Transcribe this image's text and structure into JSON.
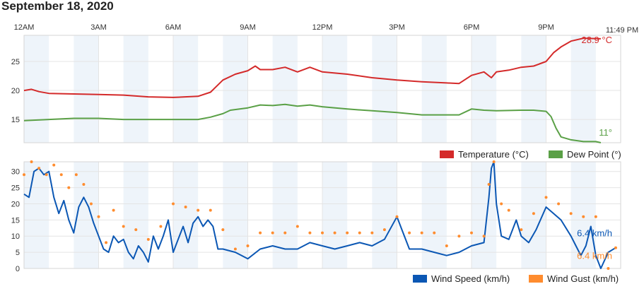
{
  "page": {
    "title": "September 18, 2020"
  },
  "time_axis": {
    "labels": [
      "12AM",
      "3AM",
      "6AM",
      "9AM",
      "12PM",
      "3PM",
      "6PM",
      "9PM"
    ],
    "current_time": "11:49 PM"
  },
  "colors": {
    "temperature": "#d42a2a",
    "dew_point": "#5aa046",
    "wind_speed": "#0b57b4",
    "wind_gust": "#ff8c2e",
    "band": "#eef4fa",
    "grid": "#e4e4e4"
  },
  "chart_data": [
    {
      "type": "line",
      "name": "temperature-chart",
      "x_unit": "hours since midnight",
      "xlim": [
        0,
        24
      ],
      "ylim": [
        11,
        29.5
      ],
      "yticks": [
        15,
        20,
        25
      ],
      "grid": true,
      "legend_position": "bottom-right",
      "series": [
        {
          "name": "Temperature (°C)",
          "color": "#d42a2a",
          "last_label": "28.9 °C",
          "points": [
            [
              0,
              20
            ],
            [
              0.3,
              20.2
            ],
            [
              0.6,
              19.8
            ],
            [
              1,
              19.5
            ],
            [
              2,
              19.4
            ],
            [
              3,
              19.3
            ],
            [
              4,
              19.2
            ],
            [
              5,
              18.9
            ],
            [
              6,
              18.8
            ],
            [
              7,
              19
            ],
            [
              7.5,
              19.7
            ],
            [
              8,
              21.8
            ],
            [
              8.5,
              22.8
            ],
            [
              9,
              23.4
            ],
            [
              9.3,
              24.2
            ],
            [
              9.5,
              23.6
            ],
            [
              10,
              23.6
            ],
            [
              10.5,
              24
            ],
            [
              11,
              23.2
            ],
            [
              11.5,
              24
            ],
            [
              12,
              23.2
            ],
            [
              13,
              22.8
            ],
            [
              14,
              22.2
            ],
            [
              15,
              21.8
            ],
            [
              16,
              21.5
            ],
            [
              17,
              21.3
            ],
            [
              17.5,
              21.2
            ],
            [
              18,
              22.6
            ],
            [
              18.5,
              23.2
            ],
            [
              18.8,
              22.2
            ],
            [
              19,
              23.2
            ],
            [
              19.5,
              23.5
            ],
            [
              20,
              24
            ],
            [
              20.5,
              24.2
            ],
            [
              21,
              25
            ],
            [
              21.3,
              26.5
            ],
            [
              21.6,
              27.5
            ],
            [
              22,
              28.5
            ],
            [
              22.5,
              29
            ],
            [
              23.2,
              28.9
            ]
          ]
        },
        {
          "name": "Dew Point (°)",
          "color": "#5aa046",
          "last_label": "11°",
          "points": [
            [
              0,
              14.8
            ],
            [
              1,
              15
            ],
            [
              2,
              15.2
            ],
            [
              3,
              15.2
            ],
            [
              4,
              15
            ],
            [
              5,
              15
            ],
            [
              6,
              15
            ],
            [
              7,
              15
            ],
            [
              7.5,
              15.4
            ],
            [
              8,
              16
            ],
            [
              8.3,
              16.6
            ],
            [
              9,
              17
            ],
            [
              9.5,
              17.5
            ],
            [
              10,
              17.4
            ],
            [
              10.5,
              17.6
            ],
            [
              11,
              17.3
            ],
            [
              11.5,
              17.5
            ],
            [
              12,
              17.2
            ],
            [
              13,
              16.8
            ],
            [
              14,
              16.5
            ],
            [
              15,
              16.2
            ],
            [
              16,
              15.8
            ],
            [
              17,
              15.8
            ],
            [
              17.5,
              15.8
            ],
            [
              18,
              16.8
            ],
            [
              18.5,
              16.6
            ],
            [
              19,
              16.5
            ],
            [
              20,
              16.6
            ],
            [
              20.5,
              16.6
            ],
            [
              21,
              16.4
            ],
            [
              21.2,
              15.5
            ],
            [
              21.4,
              13.5
            ],
            [
              21.6,
              12
            ],
            [
              22,
              11.5
            ],
            [
              22.5,
              11.2
            ],
            [
              23,
              11.2
            ],
            [
              23.2,
              11
            ]
          ]
        }
      ]
    },
    {
      "type": "line",
      "name": "wind-chart",
      "x_unit": "hours since midnight",
      "xlim": [
        0,
        24
      ],
      "ylim": [
        0,
        33
      ],
      "yticks": [
        0,
        5,
        10,
        15,
        20,
        25,
        30
      ],
      "grid": true,
      "legend_position": "bottom-right",
      "series": [
        {
          "name": "Wind Speed (km/h)",
          "color": "#0b57b4",
          "last_label": "6.4 km/h",
          "points": [
            [
              0,
              23
            ],
            [
              0.2,
              22
            ],
            [
              0.4,
              30
            ],
            [
              0.6,
              31
            ],
            [
              0.8,
              29
            ],
            [
              1,
              30
            ],
            [
              1.2,
              22
            ],
            [
              1.4,
              17
            ],
            [
              1.6,
              21
            ],
            [
              1.8,
              15
            ],
            [
              2,
              11
            ],
            [
              2.2,
              19
            ],
            [
              2.4,
              22
            ],
            [
              2.6,
              19
            ],
            [
              2.8,
              14
            ],
            [
              3,
              10
            ],
            [
              3.2,
              6
            ],
            [
              3.4,
              5
            ],
            [
              3.6,
              10
            ],
            [
              3.8,
              8
            ],
            [
              4,
              9
            ],
            [
              4.2,
              5
            ],
            [
              4.4,
              3
            ],
            [
              4.6,
              7
            ],
            [
              4.8,
              5
            ],
            [
              5,
              2
            ],
            [
              5.2,
              10
            ],
            [
              5.4,
              6
            ],
            [
              5.6,
              10
            ],
            [
              5.8,
              15
            ],
            [
              6,
              5
            ],
            [
              6.2,
              9
            ],
            [
              6.4,
              13
            ],
            [
              6.6,
              8
            ],
            [
              6.8,
              14
            ],
            [
              7,
              16
            ],
            [
              7.2,
              13
            ],
            [
              7.4,
              15
            ],
            [
              7.6,
              13
            ],
            [
              7.8,
              6
            ],
            [
              8,
              6
            ],
            [
              8.5,
              5
            ],
            [
              9,
              3
            ],
            [
              9.5,
              6
            ],
            [
              10,
              7
            ],
            [
              10.5,
              6
            ],
            [
              11,
              6
            ],
            [
              11.5,
              8
            ],
            [
              12,
              7
            ],
            [
              12.5,
              6
            ],
            [
              13,
              7
            ],
            [
              13.5,
              8
            ],
            [
              14,
              7
            ],
            [
              14.5,
              9
            ],
            [
              15,
              16
            ],
            [
              15.2,
              12
            ],
            [
              15.5,
              6
            ],
            [
              16,
              6
            ],
            [
              16.5,
              5
            ],
            [
              17,
              4
            ],
            [
              17.5,
              5
            ],
            [
              18,
              7
            ],
            [
              18.5,
              8
            ],
            [
              18.7,
              22
            ],
            [
              18.8,
              31
            ],
            [
              18.9,
              33
            ],
            [
              19,
              20
            ],
            [
              19.2,
              10
            ],
            [
              19.5,
              9
            ],
            [
              19.8,
              15
            ],
            [
              20,
              10
            ],
            [
              20.3,
              8
            ],
            [
              20.6,
              12
            ],
            [
              21,
              19
            ],
            [
              21.3,
              17
            ],
            [
              21.6,
              15
            ],
            [
              22,
              10
            ],
            [
              22.2,
              7
            ],
            [
              22.4,
              4
            ],
            [
              22.6,
              7
            ],
            [
              22.8,
              13
            ],
            [
              23,
              4
            ],
            [
              23.2,
              0
            ],
            [
              23.5,
              5
            ],
            [
              23.8,
              6.4
            ]
          ]
        },
        {
          "name": "Wind Gust (km/h)",
          "color": "#ff8c2e",
          "last_label": "6.4 km/h",
          "points": [
            [
              0,
              29
            ],
            [
              0.3,
              33
            ],
            [
              0.6,
              31
            ],
            [
              0.9,
              29
            ],
            [
              1.2,
              32
            ],
            [
              1.5,
              29
            ],
            [
              1.8,
              25
            ],
            [
              2.1,
              29
            ],
            [
              2.4,
              26
            ],
            [
              2.7,
              20
            ],
            [
              3,
              16
            ],
            [
              3.3,
              8
            ],
            [
              3.6,
              18
            ],
            [
              4,
              13
            ],
            [
              4.5,
              12
            ],
            [
              5,
              9
            ],
            [
              5.5,
              13
            ],
            [
              6,
              20
            ],
            [
              6.5,
              19
            ],
            [
              7,
              18
            ],
            [
              7.5,
              18
            ],
            [
              8,
              12
            ],
            [
              8.5,
              6
            ],
            [
              9,
              7
            ],
            [
              9.5,
              11
            ],
            [
              10,
              11
            ],
            [
              10.5,
              11
            ],
            [
              11,
              13
            ],
            [
              11.5,
              11
            ],
            [
              12,
              11
            ],
            [
              12.5,
              11
            ],
            [
              13,
              11
            ],
            [
              13.5,
              11
            ],
            [
              14,
              11
            ],
            [
              14.5,
              12
            ],
            [
              15,
              16
            ],
            [
              15.5,
              11
            ],
            [
              16,
              11
            ],
            [
              16.5,
              11
            ],
            [
              17,
              7
            ],
            [
              17.5,
              10
            ],
            [
              18,
              11
            ],
            [
              18.5,
              10
            ],
            [
              18.7,
              26
            ],
            [
              18.9,
              33
            ],
            [
              19.2,
              20
            ],
            [
              19.5,
              18
            ],
            [
              20,
              12
            ],
            [
              20.5,
              17
            ],
            [
              21,
              22
            ],
            [
              21.5,
              20
            ],
            [
              22,
              17
            ],
            [
              22.5,
              16
            ],
            [
              23,
              16
            ],
            [
              23.5,
              0
            ],
            [
              23.8,
              6.4
            ]
          ]
        }
      ]
    }
  ]
}
